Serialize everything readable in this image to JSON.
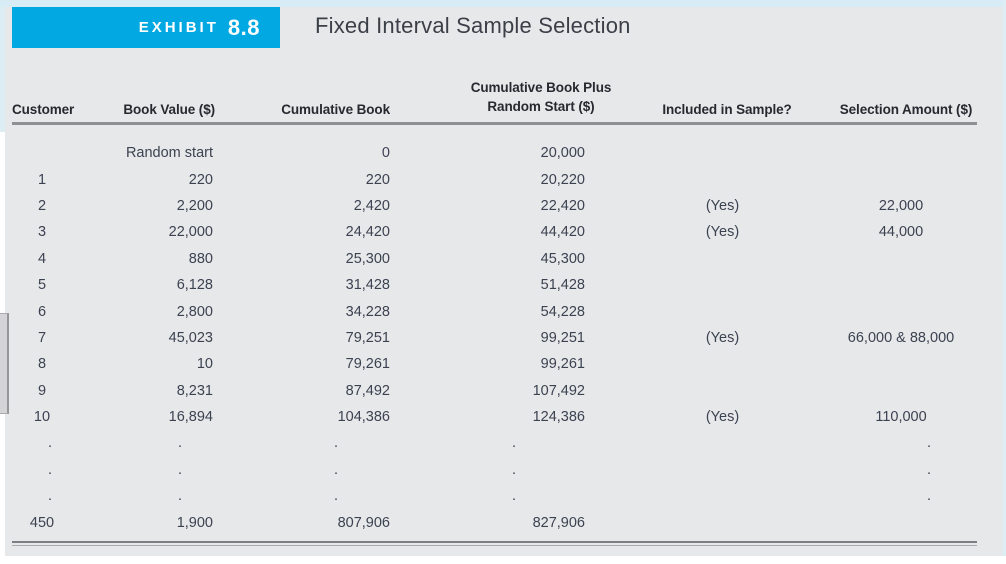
{
  "exhibit": {
    "label": "EXHIBIT",
    "number": "8.8",
    "title": "Fixed Interval Sample Selection"
  },
  "table": {
    "headers": {
      "customer": "Customer",
      "book_value": "Book Value ($)",
      "cumulative_book": "Cumulative Book",
      "cumulative_plus_line1": "Cumulative Book Plus",
      "cumulative_plus_line2": "Random Start ($)",
      "included": "Included in Sample?",
      "selection": "Selection Amount ($)"
    },
    "rows": [
      {
        "cells": [
          "",
          "Random start",
          "0",
          "20,000",
          "",
          ""
        ]
      },
      {
        "cells": [
          "1",
          "220",
          "220",
          "20,220",
          "",
          ""
        ]
      },
      {
        "cells": [
          "2",
          "2,200",
          "2,420",
          "22,420",
          "(Yes)",
          "22,000"
        ]
      },
      {
        "cells": [
          "3",
          "22,000",
          "24,420",
          "44,420",
          "(Yes)",
          "44,000"
        ]
      },
      {
        "cells": [
          "4",
          "880",
          "25,300",
          "45,300",
          "",
          ""
        ]
      },
      {
        "cells": [
          "5",
          "6,128",
          "31,428",
          "51,428",
          "",
          ""
        ]
      },
      {
        "cells": [
          "6",
          "2,800",
          "34,228",
          "54,228",
          "",
          ""
        ]
      },
      {
        "cells": [
          "7",
          "45,023",
          "79,251",
          "99,251",
          "(Yes)",
          "66,000 & 88,000"
        ]
      },
      {
        "cells": [
          "8",
          "10",
          "79,261",
          "99,261",
          "",
          ""
        ]
      },
      {
        "cells": [
          "9",
          "8,231",
          "87,492",
          "107,492",
          "",
          ""
        ]
      },
      {
        "cells": [
          "10",
          "16,894",
          "104,386",
          "124,386",
          "(Yes)",
          "110,000"
        ]
      },
      {
        "cells": [
          ".",
          ".",
          ".",
          ".",
          "",
          "."
        ],
        "dots": true
      },
      {
        "cells": [
          ".",
          ".",
          ".",
          ".",
          "",
          "."
        ],
        "dots": true
      },
      {
        "cells": [
          ".",
          ".",
          ".",
          ".",
          "",
          "."
        ],
        "dots": true
      },
      {
        "cells": [
          "450",
          "1,900",
          "807,906",
          "827,906",
          "",
          ""
        ]
      }
    ]
  },
  "colors": {
    "accent_cyan": "#02a8e2",
    "strip_cyan": "#d7ecf5",
    "panel_gray": "#e7e8ea",
    "rule_gray": "#8f8f94",
    "header_text": "#26292f",
    "body_text": "#3b4250"
  }
}
